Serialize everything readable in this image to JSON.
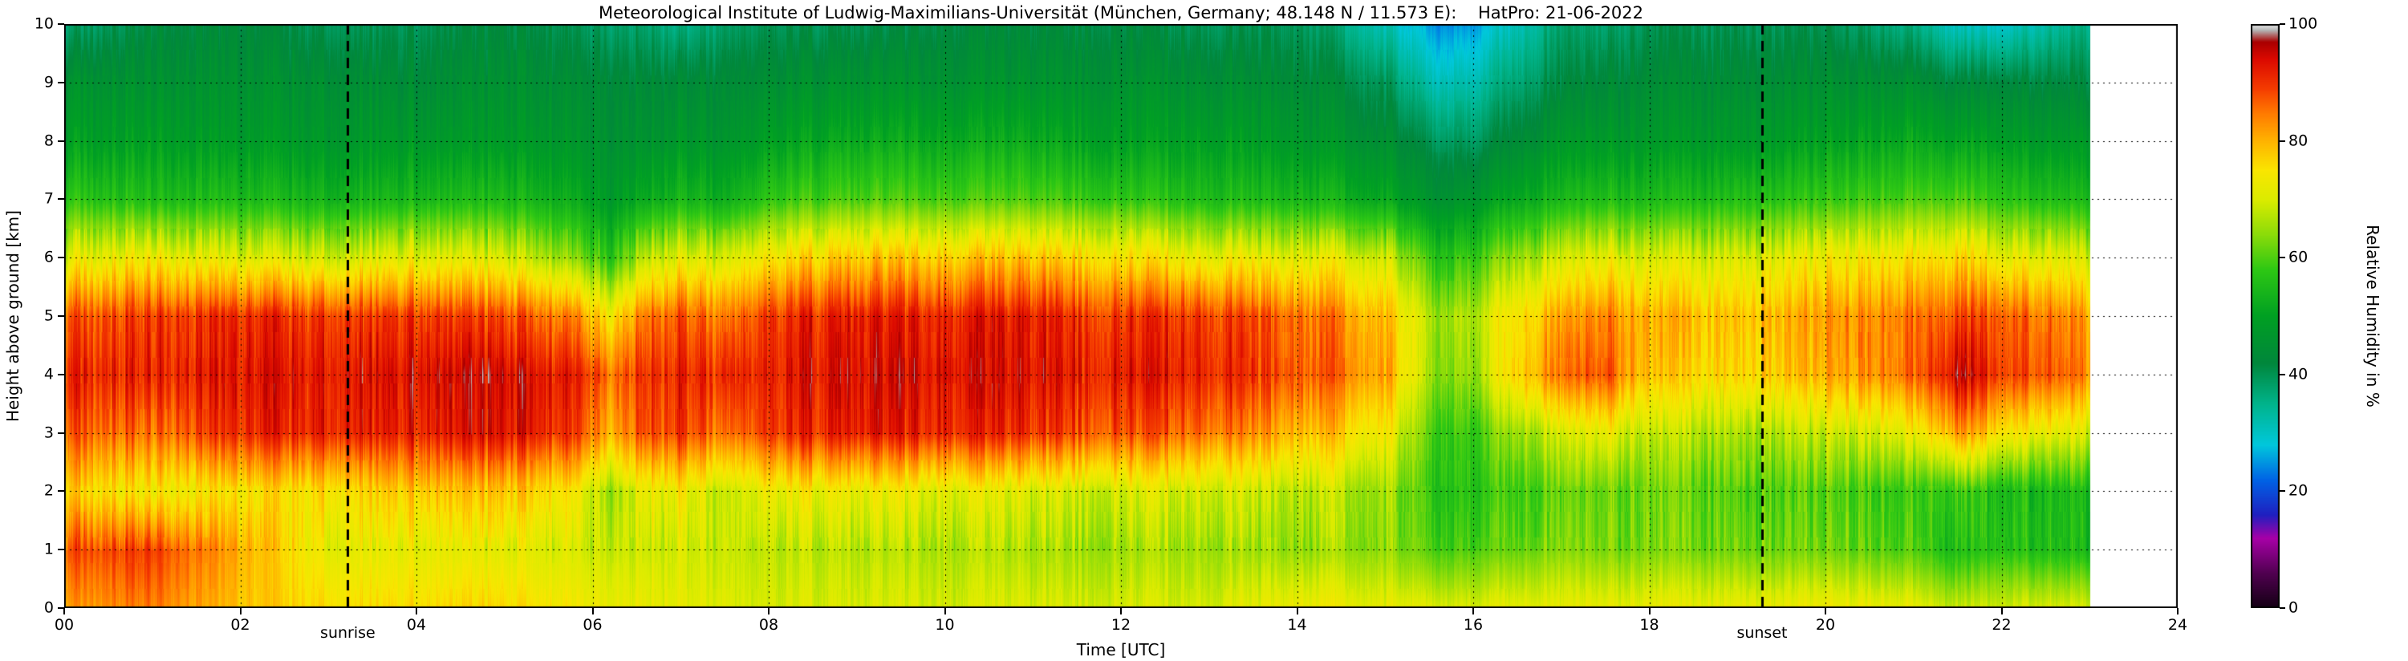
{
  "chart_data": {
    "type": "heatmap",
    "title": "Meteorological Institute of Ludwig-Maximilians-Universität (München, Germany; 48.148 N / 11.573 E):    HatPro: 21-06-2022",
    "xlabel": "Time [UTC]",
    "ylabel": "Height above ground [km]",
    "colorbar_label": "Relative Humidity in %",
    "sunrise_label": "sunrise",
    "sunset_label": "sunset",
    "x_units": "hours UTC",
    "y_units": "km",
    "value_units": "percent relative humidity",
    "xlim": [
      0,
      24
    ],
    "ylim": [
      0,
      10
    ],
    "vlim": [
      0,
      100
    ],
    "grid": "dotted black, every 2 h vertical and every 1 km horizontal",
    "legend_position": "colorbar right",
    "x_ticks": [
      0,
      2,
      4,
      6,
      8,
      10,
      12,
      14,
      16,
      18,
      20,
      22,
      24
    ],
    "x_tick_labels": [
      "00",
      "02",
      "04",
      "06",
      "08",
      "10",
      "12",
      "14",
      "16",
      "18",
      "20",
      "22",
      "24"
    ],
    "y_ticks": [
      0,
      1,
      2,
      3,
      4,
      5,
      6,
      7,
      8,
      9,
      10
    ],
    "y_tick_labels": [
      "0",
      "1",
      "2",
      "3",
      "4",
      "5",
      "6",
      "7",
      "8",
      "9",
      "10"
    ],
    "colorbar_ticks": [
      0,
      20,
      40,
      60,
      80,
      100
    ],
    "colorbar_tick_labels": [
      "0",
      "20",
      "40",
      "60",
      "80",
      "100"
    ],
    "sunrise_utc": 3.22,
    "sunset_utc": 19.28,
    "data_end_utc": 23.0,
    "heights": [
      0,
      1,
      2,
      3,
      4,
      5,
      6,
      7,
      8,
      9,
      10
    ],
    "times": [
      0,
      1,
      2,
      3,
      4,
      5,
      5.8,
      6.2,
      6.6,
      7,
      7.5,
      8,
      9,
      10,
      11,
      12,
      13,
      14,
      15,
      15.5,
      16,
      16.5,
      17,
      17.5,
      18,
      19,
      20,
      21,
      21.5,
      22,
      22.5,
      23
    ],
    "values": [
      [
        82,
        88,
        78,
        88,
        92,
        88,
        72,
        58,
        50,
        46,
        38
      ],
      [
        85,
        90,
        74,
        86,
        92,
        90,
        74,
        56,
        50,
        46,
        42
      ],
      [
        78,
        80,
        74,
        90,
        92,
        90,
        70,
        55,
        48,
        45,
        42
      ],
      [
        76,
        72,
        76,
        92,
        93,
        90,
        70,
        54,
        48,
        45,
        40
      ],
      [
        76,
        72,
        78,
        92,
        94,
        90,
        72,
        55,
        48,
        44,
        40
      ],
      [
        76,
        71,
        78,
        93,
        94,
        88,
        70,
        55,
        48,
        45,
        42
      ],
      [
        74,
        70,
        74,
        90,
        92,
        84,
        64,
        52,
        47,
        44,
        40
      ],
      [
        72,
        68,
        65,
        80,
        85,
        74,
        57,
        48,
        45,
        43,
        38
      ],
      [
        72,
        69,
        72,
        88,
        90,
        85,
        68,
        52,
        46,
        43,
        38
      ],
      [
        72,
        70,
        74,
        90,
        92,
        88,
        72,
        55,
        48,
        44,
        36
      ],
      [
        70,
        68,
        67,
        84,
        90,
        84,
        69,
        52,
        46,
        43,
        38
      ],
      [
        70,
        68,
        73,
        90,
        92,
        90,
        75,
        58,
        50,
        45,
        40
      ],
      [
        70,
        67,
        72,
        92,
        94,
        92,
        78,
        60,
        52,
        46,
        40
      ],
      [
        70,
        67,
        72,
        92,
        94,
        92,
        78,
        60,
        52,
        46,
        42
      ],
      [
        70,
        66,
        70,
        90,
        93,
        92,
        78,
        60,
        52,
        46,
        42
      ],
      [
        70,
        66,
        70,
        88,
        93,
        90,
        76,
        58,
        50,
        46,
        42
      ],
      [
        70,
        66,
        70,
        86,
        92,
        90,
        73,
        56,
        50,
        45,
        40
      ],
      [
        73,
        65,
        68,
        80,
        88,
        86,
        72,
        55,
        48,
        44,
        40
      ],
      [
        72,
        65,
        66,
        74,
        82,
        80,
        70,
        52,
        45,
        40,
        32
      ],
      [
        71,
        60,
        58,
        60,
        65,
        66,
        58,
        46,
        40,
        32,
        25
      ],
      [
        71,
        61,
        58,
        60,
        66,
        68,
        60,
        48,
        40,
        33,
        26
      ],
      [
        72,
        62,
        60,
        66,
        78,
        76,
        66,
        52,
        44,
        38,
        32
      ],
      [
        72,
        64,
        62,
        70,
        86,
        82,
        70,
        55,
        48,
        42,
        38
      ],
      [
        72,
        63,
        62,
        72,
        88,
        84,
        72,
        56,
        48,
        43,
        38
      ],
      [
        72,
        63,
        62,
        68,
        78,
        80,
        70,
        55,
        48,
        44,
        40
      ],
      [
        72,
        62,
        60,
        66,
        76,
        78,
        70,
        56,
        48,
        44,
        40
      ],
      [
        73,
        62,
        60,
        68,
        80,
        82,
        73,
        58,
        50,
        45,
        40
      ],
      [
        72,
        60,
        58,
        72,
        86,
        85,
        75,
        60,
        52,
        45,
        36
      ],
      [
        68,
        55,
        58,
        82,
        95,
        88,
        76,
        60,
        50,
        42,
        30
      ],
      [
        70,
        58,
        56,
        76,
        90,
        88,
        73,
        58,
        50,
        43,
        30
      ],
      [
        70,
        56,
        55,
        72,
        88,
        85,
        72,
        56,
        48,
        42,
        33
      ],
      [
        70,
        55,
        55,
        70,
        84,
        82,
        70,
        55,
        48,
        42,
        36
      ]
    ],
    "colormap": [
      {
        "v": 0,
        "color": "#140014"
      },
      {
        "v": 6,
        "color": "#500050"
      },
      {
        "v": 12,
        "color": "#a800a8"
      },
      {
        "v": 16,
        "color": "#2020c0"
      },
      {
        "v": 22,
        "color": "#0064e6"
      },
      {
        "v": 28,
        "color": "#00c8dc"
      },
      {
        "v": 35,
        "color": "#00b48c"
      },
      {
        "v": 42,
        "color": "#00873c"
      },
      {
        "v": 50,
        "color": "#00a023"
      },
      {
        "v": 58,
        "color": "#2ec814"
      },
      {
        "v": 64,
        "color": "#8cdc0a"
      },
      {
        "v": 70,
        "color": "#dcec00"
      },
      {
        "v": 75,
        "color": "#fae600"
      },
      {
        "v": 80,
        "color": "#ffb400"
      },
      {
        "v": 85,
        "color": "#ff7800"
      },
      {
        "v": 89,
        "color": "#f53c00"
      },
      {
        "v": 94,
        "color": "#dc0a00"
      },
      {
        "v": 97,
        "color": "#aa0000"
      },
      {
        "v": 99,
        "color": "#b4b4b4"
      },
      {
        "v": 100,
        "color": "#ebebeb"
      }
    ]
  }
}
